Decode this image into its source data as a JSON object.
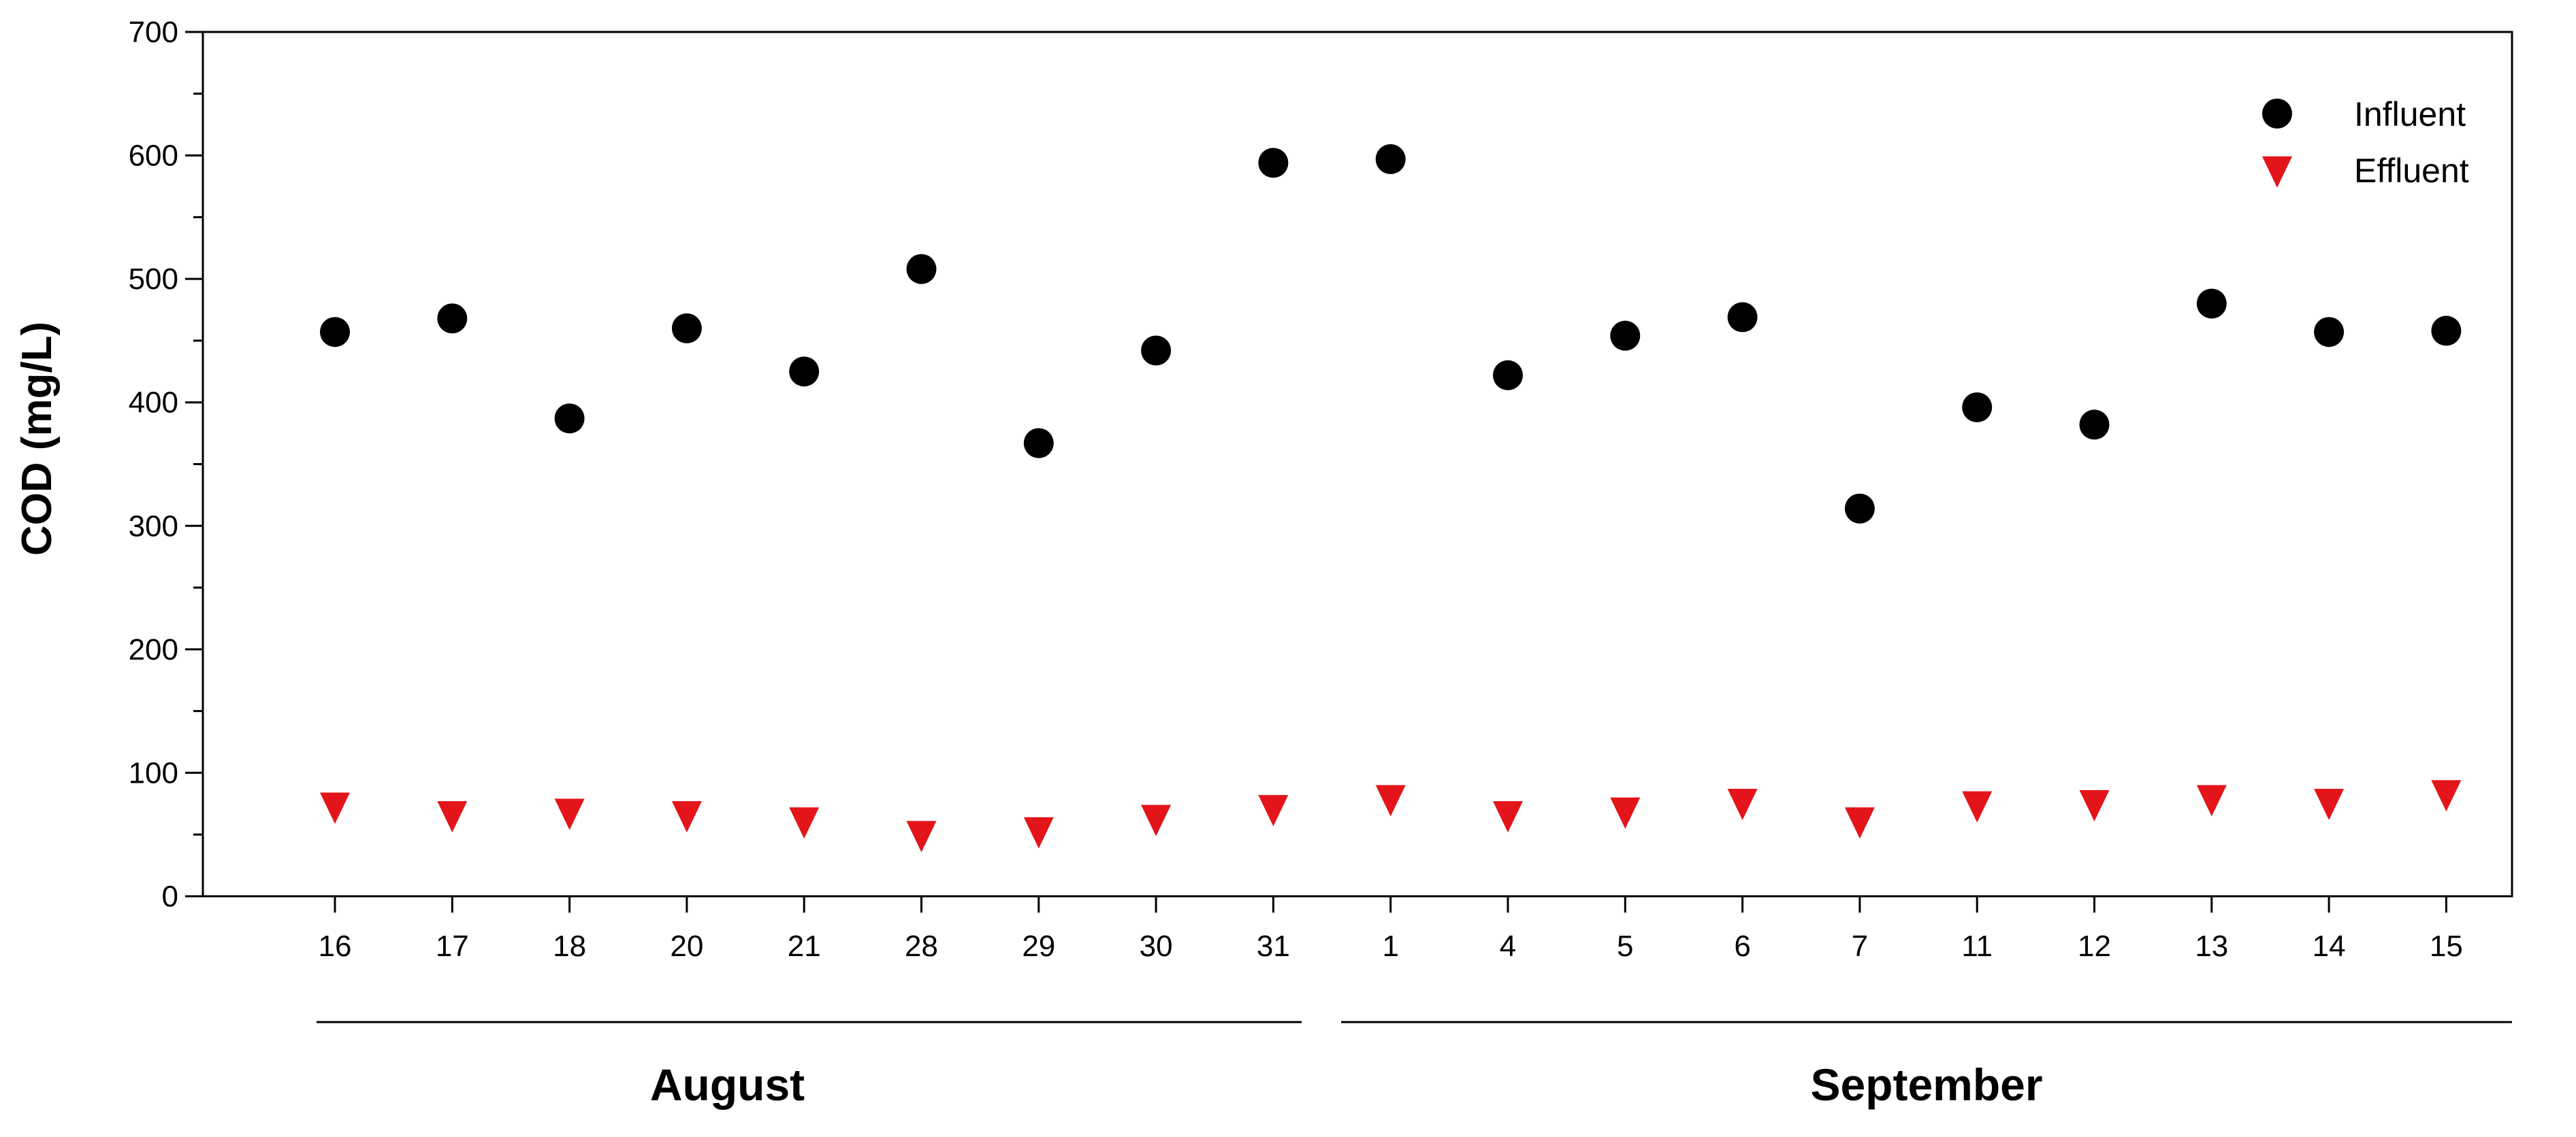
{
  "chart_data": {
    "type": "scatter",
    "title": "",
    "xlabel": "",
    "ylabel": "COD (mg/L)",
    "ylim": [
      0,
      700
    ],
    "yticks": [
      0,
      100,
      200,
      300,
      400,
      500,
      600,
      700
    ],
    "grid": false,
    "legend_position": "top-right",
    "categories": [
      "16",
      "17",
      "18",
      "20",
      "21",
      "28",
      "29",
      "30",
      "31",
      "1",
      "4",
      "5",
      "6",
      "7",
      "11",
      "12",
      "13",
      "14",
      "15"
    ],
    "groups": [
      {
        "label": "August",
        "start": 0,
        "end": 8
      },
      {
        "label": "September",
        "start": 9,
        "end": 18
      }
    ],
    "series": [
      {
        "name": "Influent",
        "marker": "circle",
        "color": "#000000",
        "values": [
          457,
          468,
          387,
          460,
          425,
          508,
          367,
          442,
          594,
          597,
          422,
          454,
          469,
          314,
          396,
          382,
          480,
          457,
          458
        ]
      },
      {
        "name": "Effluent",
        "marker": "triangle-down",
        "color": "#e3151a",
        "values": [
          73,
          66,
          68,
          66,
          61,
          50,
          53,
          63,
          71,
          79,
          66,
          69,
          76,
          61,
          74,
          75,
          79,
          76,
          83
        ]
      }
    ]
  }
}
